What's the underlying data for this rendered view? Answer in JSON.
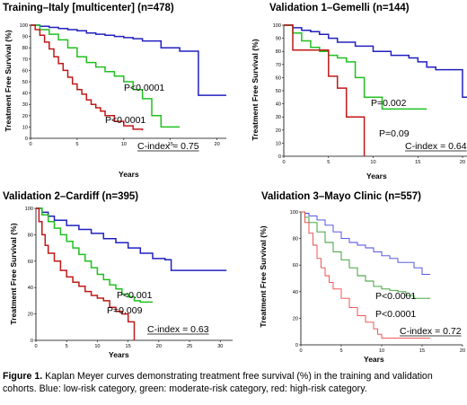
{
  "chart_data": [
    {
      "type": "line",
      "title": "Training–Italy [multicenter] (n=478)",
      "xlabel": "Years",
      "ylabel": "Treatment Free Survival (%)",
      "xlim": [
        0,
        21
      ],
      "ylim": [
        0,
        100
      ],
      "xticks": [
        0,
        5,
        10,
        15,
        20
      ],
      "yticks": [
        0,
        10,
        20,
        30,
        40,
        50,
        60,
        70,
        80,
        90,
        100
      ],
      "grid": false,
      "series": [
        {
          "color": "#2020c0",
          "x": [
            0,
            1,
            2,
            3,
            4,
            5,
            6,
            7,
            8,
            9,
            10,
            11,
            12,
            14,
            16,
            17.5,
            18,
            21
          ],
          "y": [
            100,
            99,
            98,
            97,
            96,
            95,
            93,
            92,
            91,
            90,
            89,
            88,
            86,
            80,
            77,
            77,
            38,
            38
          ]
        },
        {
          "color": "#20c020",
          "x": [
            0,
            1,
            2,
            3,
            4,
            5,
            6,
            7,
            8,
            9,
            10,
            11,
            12,
            13,
            14,
            15,
            16
          ],
          "y": [
            100,
            96,
            92,
            87,
            80,
            72,
            67,
            63,
            59,
            55,
            50,
            43,
            35,
            20,
            10,
            10,
            10
          ]
        },
        {
          "color": "#c01818",
          "x": [
            0,
            0.5,
            1,
            1.5,
            2,
            2.5,
            3,
            3.5,
            4,
            4.5,
            5,
            5.5,
            6,
            6.5,
            7,
            7.5,
            8,
            9,
            10,
            11,
            12
          ],
          "y": [
            100,
            96,
            91,
            85,
            79,
            72,
            66,
            60,
            54,
            48,
            43,
            39,
            34,
            30,
            27,
            24,
            20,
            15,
            11,
            8,
            7
          ]
        }
      ],
      "annotations": [
        "P<0.0001",
        "P<0.0001",
        "C-index = 0.75"
      ]
    },
    {
      "type": "line",
      "title": "Validation 1–Gemelli (n=144)",
      "xlabel": "Years",
      "ylabel": "Treatment Free Survival (%)",
      "xlim": [
        0,
        21
      ],
      "ylim": [
        0,
        100
      ],
      "xticks": [
        0,
        5,
        10,
        15,
        20
      ],
      "yticks": [
        0,
        10,
        20,
        30,
        40,
        50,
        60,
        70,
        80,
        90,
        100
      ],
      "grid": false,
      "series": [
        {
          "color": "#2020c0",
          "x": [
            0,
            1,
            2,
            3,
            4,
            5,
            6,
            8,
            10,
            12,
            14,
            15,
            16,
            17,
            18,
            19,
            20,
            21
          ],
          "y": [
            100,
            98,
            96,
            95,
            93,
            90,
            87,
            84,
            80,
            77,
            75,
            72,
            68,
            66,
            66,
            66,
            45,
            45
          ]
        },
        {
          "color": "#20c020",
          "x": [
            0,
            1,
            2,
            3,
            4,
            5,
            6,
            7,
            8,
            9,
            10,
            11,
            12,
            14,
            16
          ],
          "y": [
            100,
            94,
            88,
            83,
            80,
            77,
            75,
            72,
            60,
            45,
            45,
            36,
            36,
            36,
            36
          ]
        },
        {
          "color": "#c01818",
          "x": [
            0,
            1,
            1.5,
            5,
            6,
            7,
            7.5,
            8.5,
            9
          ],
          "y": [
            100,
            81,
            81,
            61,
            52,
            30,
            30,
            30,
            0
          ]
        }
      ],
      "annotations": [
        "P=0.002",
        "P=0.09",
        "C-index = 0.64"
      ]
    },
    {
      "type": "line",
      "title": "Validation 2–Cardiff (n=395)",
      "xlabel": "Years",
      "ylabel": "Treatment Free Survival (%)",
      "xlim": [
        0,
        32
      ],
      "ylim": [
        0,
        100
      ],
      "xticks": [
        0,
        5,
        10,
        15,
        20,
        25,
        30
      ],
      "yticks": [
        0,
        20,
        40,
        60,
        80,
        100
      ],
      "grid": false,
      "series": [
        {
          "color": "#2020c0",
          "x": [
            0,
            1,
            2,
            3,
            5,
            7,
            9,
            11,
            13,
            15,
            17,
            19,
            21,
            22,
            24,
            26,
            28,
            30,
            31
          ],
          "y": [
            100,
            97,
            94,
            91,
            87,
            84,
            81,
            77,
            74,
            70,
            66,
            62,
            61,
            53,
            53,
            53,
            53,
            53,
            53
          ]
        },
        {
          "color": "#20c020",
          "x": [
            0,
            1,
            2,
            3,
            4,
            5,
            6,
            7,
            8,
            9,
            10,
            11,
            12,
            13,
            14,
            15,
            16,
            17,
            19
          ],
          "y": [
            100,
            95,
            90,
            85,
            80,
            75,
            70,
            65,
            60,
            55,
            50,
            46,
            42,
            39,
            35,
            33,
            30,
            29,
            29
          ]
        },
        {
          "color": "#c01818",
          "x": [
            0,
            0.5,
            1,
            1.5,
            2,
            3,
            4,
            5,
            6,
            7,
            8,
            9,
            10,
            11,
            12,
            13,
            14,
            15,
            16
          ],
          "y": [
            100,
            90,
            80,
            72,
            66,
            60,
            53,
            48,
            44,
            41,
            37,
            34,
            32,
            30,
            25,
            22,
            20,
            14,
            0
          ]
        }
      ],
      "annotations": [
        "P<0.001",
        "P=0.009",
        "C-index = 0.63"
      ]
    },
    {
      "type": "line",
      "title": "Validation 3–Mayo Clinic (n=557)",
      "xlabel": "Years",
      "ylabel": "Treatment Free Survival (%)",
      "xlim": [
        0,
        20
      ],
      "ylim": [
        0,
        100
      ],
      "xticks": [
        0,
        5,
        10,
        15,
        20
      ],
      "yticks": [
        0,
        20,
        40,
        60,
        80,
        100
      ],
      "grid": false,
      "series": [
        {
          "color": "#4444e0",
          "x": [
            0,
            0.5,
            1,
            2,
            3,
            4,
            5,
            6,
            7,
            8,
            9,
            10,
            11,
            12,
            13,
            14,
            15,
            16
          ],
          "y": [
            100,
            99,
            97,
            94,
            90,
            85,
            80,
            77,
            75,
            73,
            70,
            67,
            65,
            62,
            62,
            58,
            53,
            53
          ]
        },
        {
          "color": "#2a9a2a",
          "x": [
            0,
            0.5,
            1,
            2,
            3,
            4,
            5,
            6,
            7,
            8,
            9,
            10,
            11,
            12,
            13,
            14,
            15,
            16
          ],
          "y": [
            100,
            96,
            92,
            85,
            77,
            70,
            64,
            58,
            52,
            48,
            44,
            42,
            41,
            40,
            37,
            35,
            35,
            35
          ]
        },
        {
          "color": "#ee4444",
          "x": [
            0,
            0.5,
            1,
            1.5,
            2,
            2.5,
            3,
            3.5,
            4,
            5,
            6,
            7,
            8,
            9,
            9.5,
            10,
            11,
            13,
            16
          ],
          "y": [
            100,
            92,
            84,
            75,
            65,
            58,
            52,
            47,
            42,
            35,
            28,
            22,
            17,
            12,
            8,
            5,
            5,
            5,
            5
          ]
        }
      ],
      "annotations": [
        "P<0.0001",
        "P<0.0001",
        "C-index = 0.72"
      ]
    }
  ],
  "caption": {
    "label": "Figure 1.",
    "text": " Kaplan Meyer curves demonstrating treatment free survival (%) in the training and validation cohorts.  Blue: low-risk category, green: moderate-risk category, red: high-risk category."
  }
}
